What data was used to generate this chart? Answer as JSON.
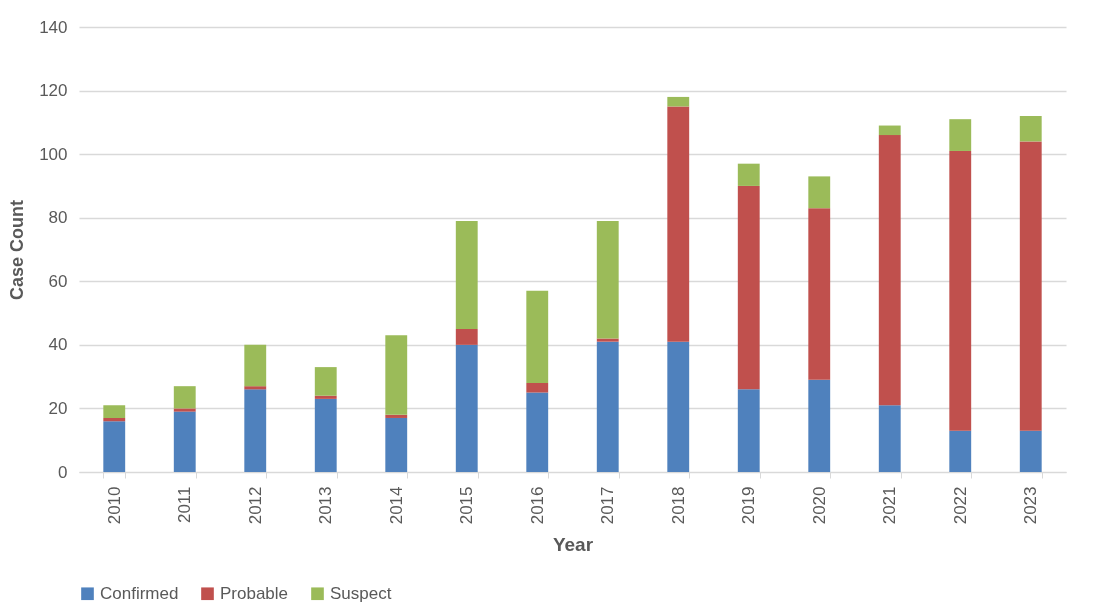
{
  "chart_data": {
    "type": "bar",
    "stacked": true,
    "xlabel": "Year",
    "ylabel": "Case Count",
    "categories": [
      "2010",
      "2011",
      "2012",
      "2013",
      "2014",
      "2015",
      "2016",
      "2017",
      "2018",
      "2019",
      "2020",
      "2021",
      "2022",
      "2023"
    ],
    "series": [
      {
        "name": "Confirmed",
        "color": "#4f81bd",
        "values": [
          16,
          19,
          26,
          23,
          17,
          40,
          25,
          41,
          41,
          26,
          29,
          21,
          13,
          13
        ]
      },
      {
        "name": "Probable",
        "color": "#c0504d",
        "values": [
          1,
          1,
          1,
          1,
          1,
          5,
          3,
          1,
          74,
          64,
          54,
          85,
          88,
          91
        ]
      },
      {
        "name": "Suspect",
        "color": "#9bbb59",
        "values": [
          4,
          7,
          13,
          9,
          25,
          34,
          29,
          37,
          3,
          7,
          10,
          3,
          10,
          8
        ]
      }
    ],
    "ylim": [
      0,
      140
    ],
    "yticks": [
      0,
      20,
      40,
      60,
      80,
      100,
      120,
      140
    ],
    "grid": "y",
    "legend": "bottom"
  }
}
